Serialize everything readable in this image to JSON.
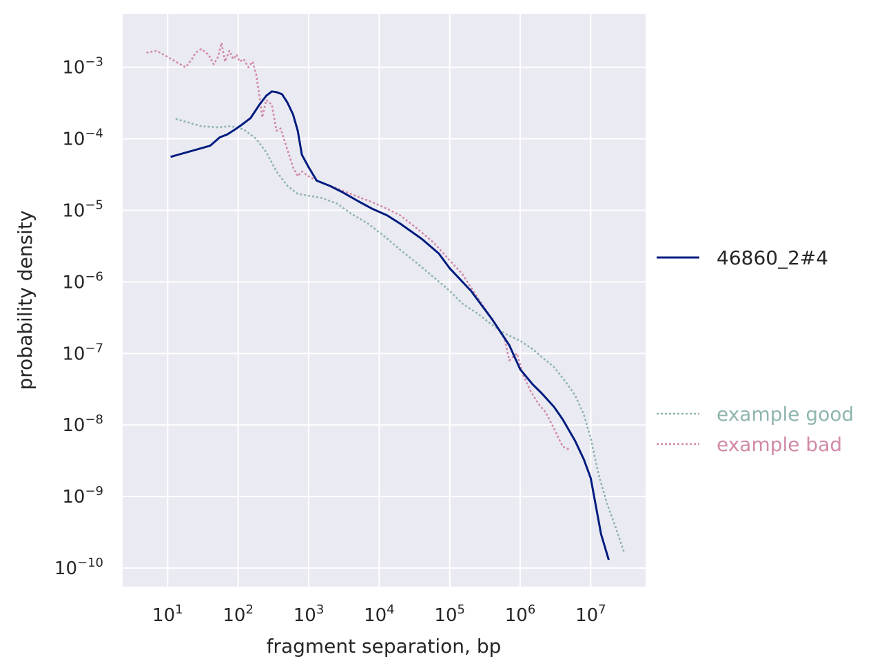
{
  "chart_data": {
    "type": "line",
    "xlabel": "fragment separation, bp",
    "ylabel": "probability density",
    "x_scale": "log",
    "y_scale": "log",
    "xlim": [
      2.3,
      60000000
    ],
    "ylim": [
      5.5e-11,
      0.0056
    ],
    "grid": true,
    "x_ticks": [
      {
        "value": 10,
        "base": "10",
        "exp": "1"
      },
      {
        "value": 100,
        "base": "10",
        "exp": "2"
      },
      {
        "value": 1000,
        "base": "10",
        "exp": "3"
      },
      {
        "value": 10000,
        "base": "10",
        "exp": "4"
      },
      {
        "value": 100000,
        "base": "10",
        "exp": "5"
      },
      {
        "value": 1000000,
        "base": "10",
        "exp": "6"
      },
      {
        "value": 10000000,
        "base": "10",
        "exp": "7"
      }
    ],
    "y_ticks": [
      {
        "value": 0.001,
        "base": "10",
        "exp": "−3"
      },
      {
        "value": 0.0001,
        "base": "10",
        "exp": "−4"
      },
      {
        "value": 1e-05,
        "base": "10",
        "exp": "−5"
      },
      {
        "value": 1e-06,
        "base": "10",
        "exp": "−6"
      },
      {
        "value": 1e-07,
        "base": "10",
        "exp": "−7"
      },
      {
        "value": 1e-08,
        "base": "10",
        "exp": "−8"
      },
      {
        "value": 1e-09,
        "base": "10",
        "exp": "−9"
      },
      {
        "value": 1e-10,
        "base": "10",
        "exp": "−10"
      }
    ],
    "legend": {
      "placement": "right",
      "main": [
        {
          "name": "46860_2#4",
          "color": "#001c7f",
          "style": "solid"
        }
      ],
      "reference": [
        {
          "name": "example good",
          "color": "#8fb5b0",
          "style": "dotted"
        },
        {
          "name": "example bad",
          "color": "#d18aa8",
          "style": "dotted"
        }
      ]
    },
    "series": [
      {
        "name": "46860_2#4",
        "color": "#001c7f",
        "style": "solid",
        "x": [
          11,
          40,
          55,
          70,
          90,
          110,
          150,
          200,
          250,
          300,
          350,
          420,
          500,
          600,
          700,
          800,
          1000,
          1300,
          2000,
          3000,
          5000,
          8000,
          13000,
          20000,
          40000,
          70000,
          100000,
          200000,
          400000,
          700000,
          1000000,
          1500000,
          2000000,
          3000000,
          4000000,
          6000000,
          8000000,
          10000000,
          14000000,
          18000000
        ],
        "y": [
          5.6e-05,
          8e-05,
          0.000105,
          0.000115,
          0.000135,
          0.000155,
          0.000195,
          0.0003,
          0.0004,
          0.00046,
          0.00045,
          0.00042,
          0.00032,
          0.00022,
          0.00013,
          6e-05,
          4e-05,
          2.6e-05,
          2.2e-05,
          1.8e-05,
          1.35e-05,
          1.05e-05,
          8.5e-06,
          6.5e-06,
          4e-06,
          2.5e-06,
          1.55e-06,
          7.5e-07,
          3e-07,
          1.3e-07,
          6e-08,
          3.7e-08,
          2.8e-08,
          1.8e-08,
          1.2e-08,
          6e-09,
          3.3e-09,
          1.8e-09,
          3e-10,
          1.3e-10
        ]
      },
      {
        "name": "example good",
        "color": "#8fb5b0",
        "style": "dotted",
        "x": [
          13,
          30,
          50,
          80,
          120,
          180,
          250,
          350,
          500,
          700,
          1000,
          1500,
          2500,
          4000,
          7000,
          12000,
          20000,
          35000,
          60000,
          100000,
          150000,
          250000,
          400000,
          600000,
          1000000,
          1500000,
          2000000,
          3000000,
          4500000,
          6000000,
          8000000,
          10000000,
          13000000,
          17000000,
          22000000,
          30000000
        ],
        "y": [
          0.00019,
          0.00015,
          0.000145,
          0.00015,
          0.000135,
          0.0001,
          6.5e-05,
          3.5e-05,
          2.2e-05,
          1.7e-05,
          1.6e-05,
          1.5e-05,
          1.25e-05,
          9e-06,
          6.5e-06,
          4.3e-06,
          2.8e-06,
          1.8e-06,
          1.15e-06,
          7.5e-07,
          5e-07,
          3.6e-07,
          2.5e-07,
          1.9e-07,
          1.5e-07,
          1.15e-07,
          9e-08,
          6.5e-08,
          3.9e-08,
          2.6e-08,
          1.4e-08,
          6.5e-09,
          2e-09,
          8e-10,
          4e-10,
          1.6e-10
        ]
      },
      {
        "name": "example bad",
        "color": "#d18aa8",
        "style": "dotted",
        "x": [
          5,
          7,
          10,
          13,
          18,
          22,
          25,
          30,
          38,
          45,
          52,
          58,
          65,
          75,
          85,
          95,
          105,
          120,
          140,
          160,
          180,
          200,
          220,
          250,
          300,
          350,
          400,
          500,
          600,
          700,
          800,
          1000,
          1300,
          2000,
          3000,
          5000,
          8000,
          13000,
          20000,
          35000,
          60000,
          100000,
          150000,
          250000,
          400000,
          600000,
          700000,
          900000,
          1100000,
          1400000,
          1800000,
          2300000,
          3000000,
          4000000,
          5000000
        ],
        "y": [
          0.0016,
          0.0017,
          0.0014,
          0.0012,
          0.001,
          0.0013,
          0.0016,
          0.0018,
          0.0015,
          0.0011,
          0.0014,
          0.0022,
          0.0012,
          0.0017,
          0.0013,
          0.0015,
          0.0012,
          0.0013,
          0.001,
          0.0012,
          0.0008,
          0.0004,
          0.0002,
          0.00035,
          0.0003,
          0.00013,
          0.00014,
          7e-05,
          4e-05,
          3e-05,
          3.5e-05,
          3e-05,
          2.6e-05,
          2.2e-05,
          1.9e-05,
          1.55e-05,
          1.3e-05,
          1.05e-05,
          8.5e-06,
          5.5e-06,
          3.5e-06,
          2e-06,
          1.3e-06,
          6e-07,
          3e-07,
          1.6e-07,
          8e-08,
          1e-07,
          5e-08,
          3e-08,
          2e-08,
          1.5e-08,
          9e-09,
          5e-09,
          4.5e-09
        ]
      }
    ]
  }
}
